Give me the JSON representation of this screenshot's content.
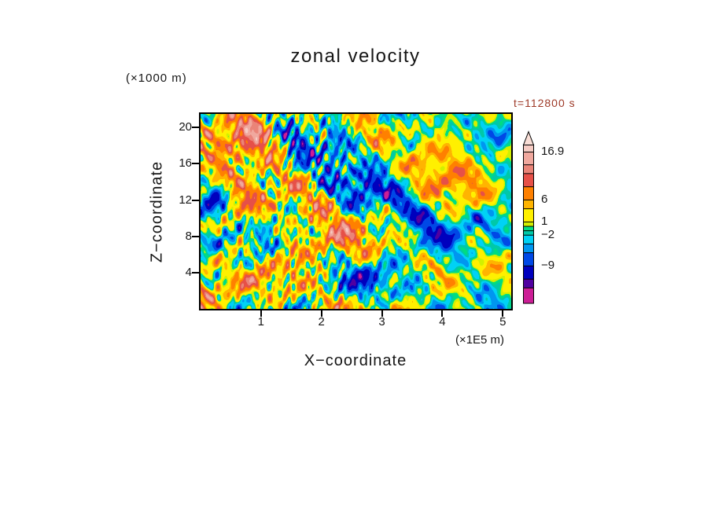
{
  "chart_data": {
    "type": "heatmap",
    "title": "zonal velocity",
    "timestamp": "t=112800 s",
    "timestamp_color": "#9e3a28",
    "xlabel": "X−coordinate",
    "ylabel": "Z−coordinate",
    "x_unit": "(×1E5 m)",
    "y_unit": "(×1000 m)",
    "xlim": [
      0,
      5.14
    ],
    "ylim": [
      0,
      21.5
    ],
    "x_ticks": [
      1,
      2,
      3,
      4,
      5
    ],
    "y_ticks": [
      4,
      8,
      12,
      16,
      20
    ],
    "grid": false,
    "legend_position": "right-colorbar",
    "value_range": [
      -17.6,
      18.5
    ],
    "colorbar": {
      "top_value": 18.5,
      "bottom_value": -17.6,
      "arrow_color": "#f9ded6",
      "labels": [
        {
          "text": "16.9",
          "value": 16.9
        },
        {
          "text": "6",
          "value": 6
        },
        {
          "text": "1",
          "value": 1
        },
        {
          "text": "−2",
          "value": -2
        },
        {
          "text": "−9",
          "value": -9
        }
      ],
      "bands": [
        {
          "min": 16.9,
          "color": "#f6ccc4"
        },
        {
          "min": 14,
          "color": "#f0a89e"
        },
        {
          "min": 12,
          "color": "#ea8478"
        },
        {
          "min": 9,
          "color": "#e65048"
        },
        {
          "min": 6,
          "color": "#ff8000"
        },
        {
          "min": 4,
          "color": "#ffb400"
        },
        {
          "min": 1,
          "color": "#fff000"
        },
        {
          "min": 0,
          "color": "#d2f000"
        },
        {
          "min": -1,
          "color": "#00dc82"
        },
        {
          "min": -2,
          "color": "#00c8a8"
        },
        {
          "min": -4,
          "color": "#00d2f5"
        },
        {
          "min": -6,
          "color": "#0096f0"
        },
        {
          "min": -9,
          "color": "#0048e6"
        },
        {
          "min": -12,
          "color": "#0000be"
        },
        {
          "min": -14,
          "color": "#5000a0"
        },
        {
          "min": -99,
          "color": "#cc1e96"
        }
      ]
    },
    "field_gen": {
      "seed": 12,
      "bias": 1.0,
      "sigma_base": 3.0,
      "sigma_left_boost": 0.85,
      "streak_amp": 2.4,
      "streak_center": 0.34,
      "streak_width": 0.22,
      "octaves": [
        {
          "count": 6,
          "fx": [
            1.2,
            3
          ],
          "fz": [
            1,
            2.6
          ],
          "amp": 1.0
        },
        {
          "count": 8,
          "fx": [
            4,
            9
          ],
          "fz": [
            2.5,
            7
          ],
          "amp": 0.75
        },
        {
          "count": 10,
          "fx": [
            10,
            22
          ],
          "fz": [
            5,
            14
          ],
          "amp": 0.5
        }
      ],
      "streak_octaves": [
        {
          "count": 6,
          "fx": [
            26,
            46
          ],
          "fz": [
            4,
            10
          ],
          "amp": 1.0
        }
      ],
      "blobs": [
        {
          "x": 0.12,
          "z": 0.84,
          "a": 5.5,
          "sx": 0.13,
          "sz": 0.11
        },
        {
          "x": 0.04,
          "z": 0.55,
          "a": -10,
          "sx": 0.04,
          "sz": 0.06
        },
        {
          "x": 0.3,
          "z": 0.87,
          "a": -6.5,
          "sx": 0.045,
          "sz": 0.1
        },
        {
          "x": 0.43,
          "z": 0.8,
          "a": -5.5,
          "sx": 0.04,
          "sz": 0.09
        },
        {
          "x": 0.36,
          "z": 0.3,
          "a": 4.5,
          "sx": 0.1,
          "sz": 0.1
        },
        {
          "x": 0.22,
          "z": 0.42,
          "a": -5.0,
          "sx": 0.03,
          "sz": 0.05
        },
        {
          "x": 0.52,
          "z": 0.62,
          "a": -5.0,
          "sx": 0.035,
          "sz": 0.055
        },
        {
          "x": 0.63,
          "z": 0.8,
          "a": -6.0,
          "sx": 0.05,
          "sz": 0.06
        },
        {
          "x": 0.8,
          "z": 0.8,
          "a": 5.5,
          "sx": 0.09,
          "sz": 0.08
        },
        {
          "x": 0.97,
          "z": 0.93,
          "a": -6.5,
          "sx": 0.05,
          "sz": 0.06
        },
        {
          "x": 0.76,
          "z": 0.45,
          "a": -3.0,
          "sx": 0.22,
          "sz": 0.26
        },
        {
          "x": 1.0,
          "z": 0.45,
          "a": -4.0,
          "sx": 0.06,
          "sz": 0.1
        },
        {
          "x": 0.55,
          "z": 0.14,
          "a": -3.5,
          "sx": 0.08,
          "sz": 0.07
        },
        {
          "x": 0.13,
          "z": 0.5,
          "a": 3.5,
          "sx": 0.06,
          "sz": 0.16
        },
        {
          "x": 0.88,
          "z": 0.62,
          "a": 3.0,
          "sx": 0.1,
          "sz": 0.08
        }
      ]
    }
  }
}
